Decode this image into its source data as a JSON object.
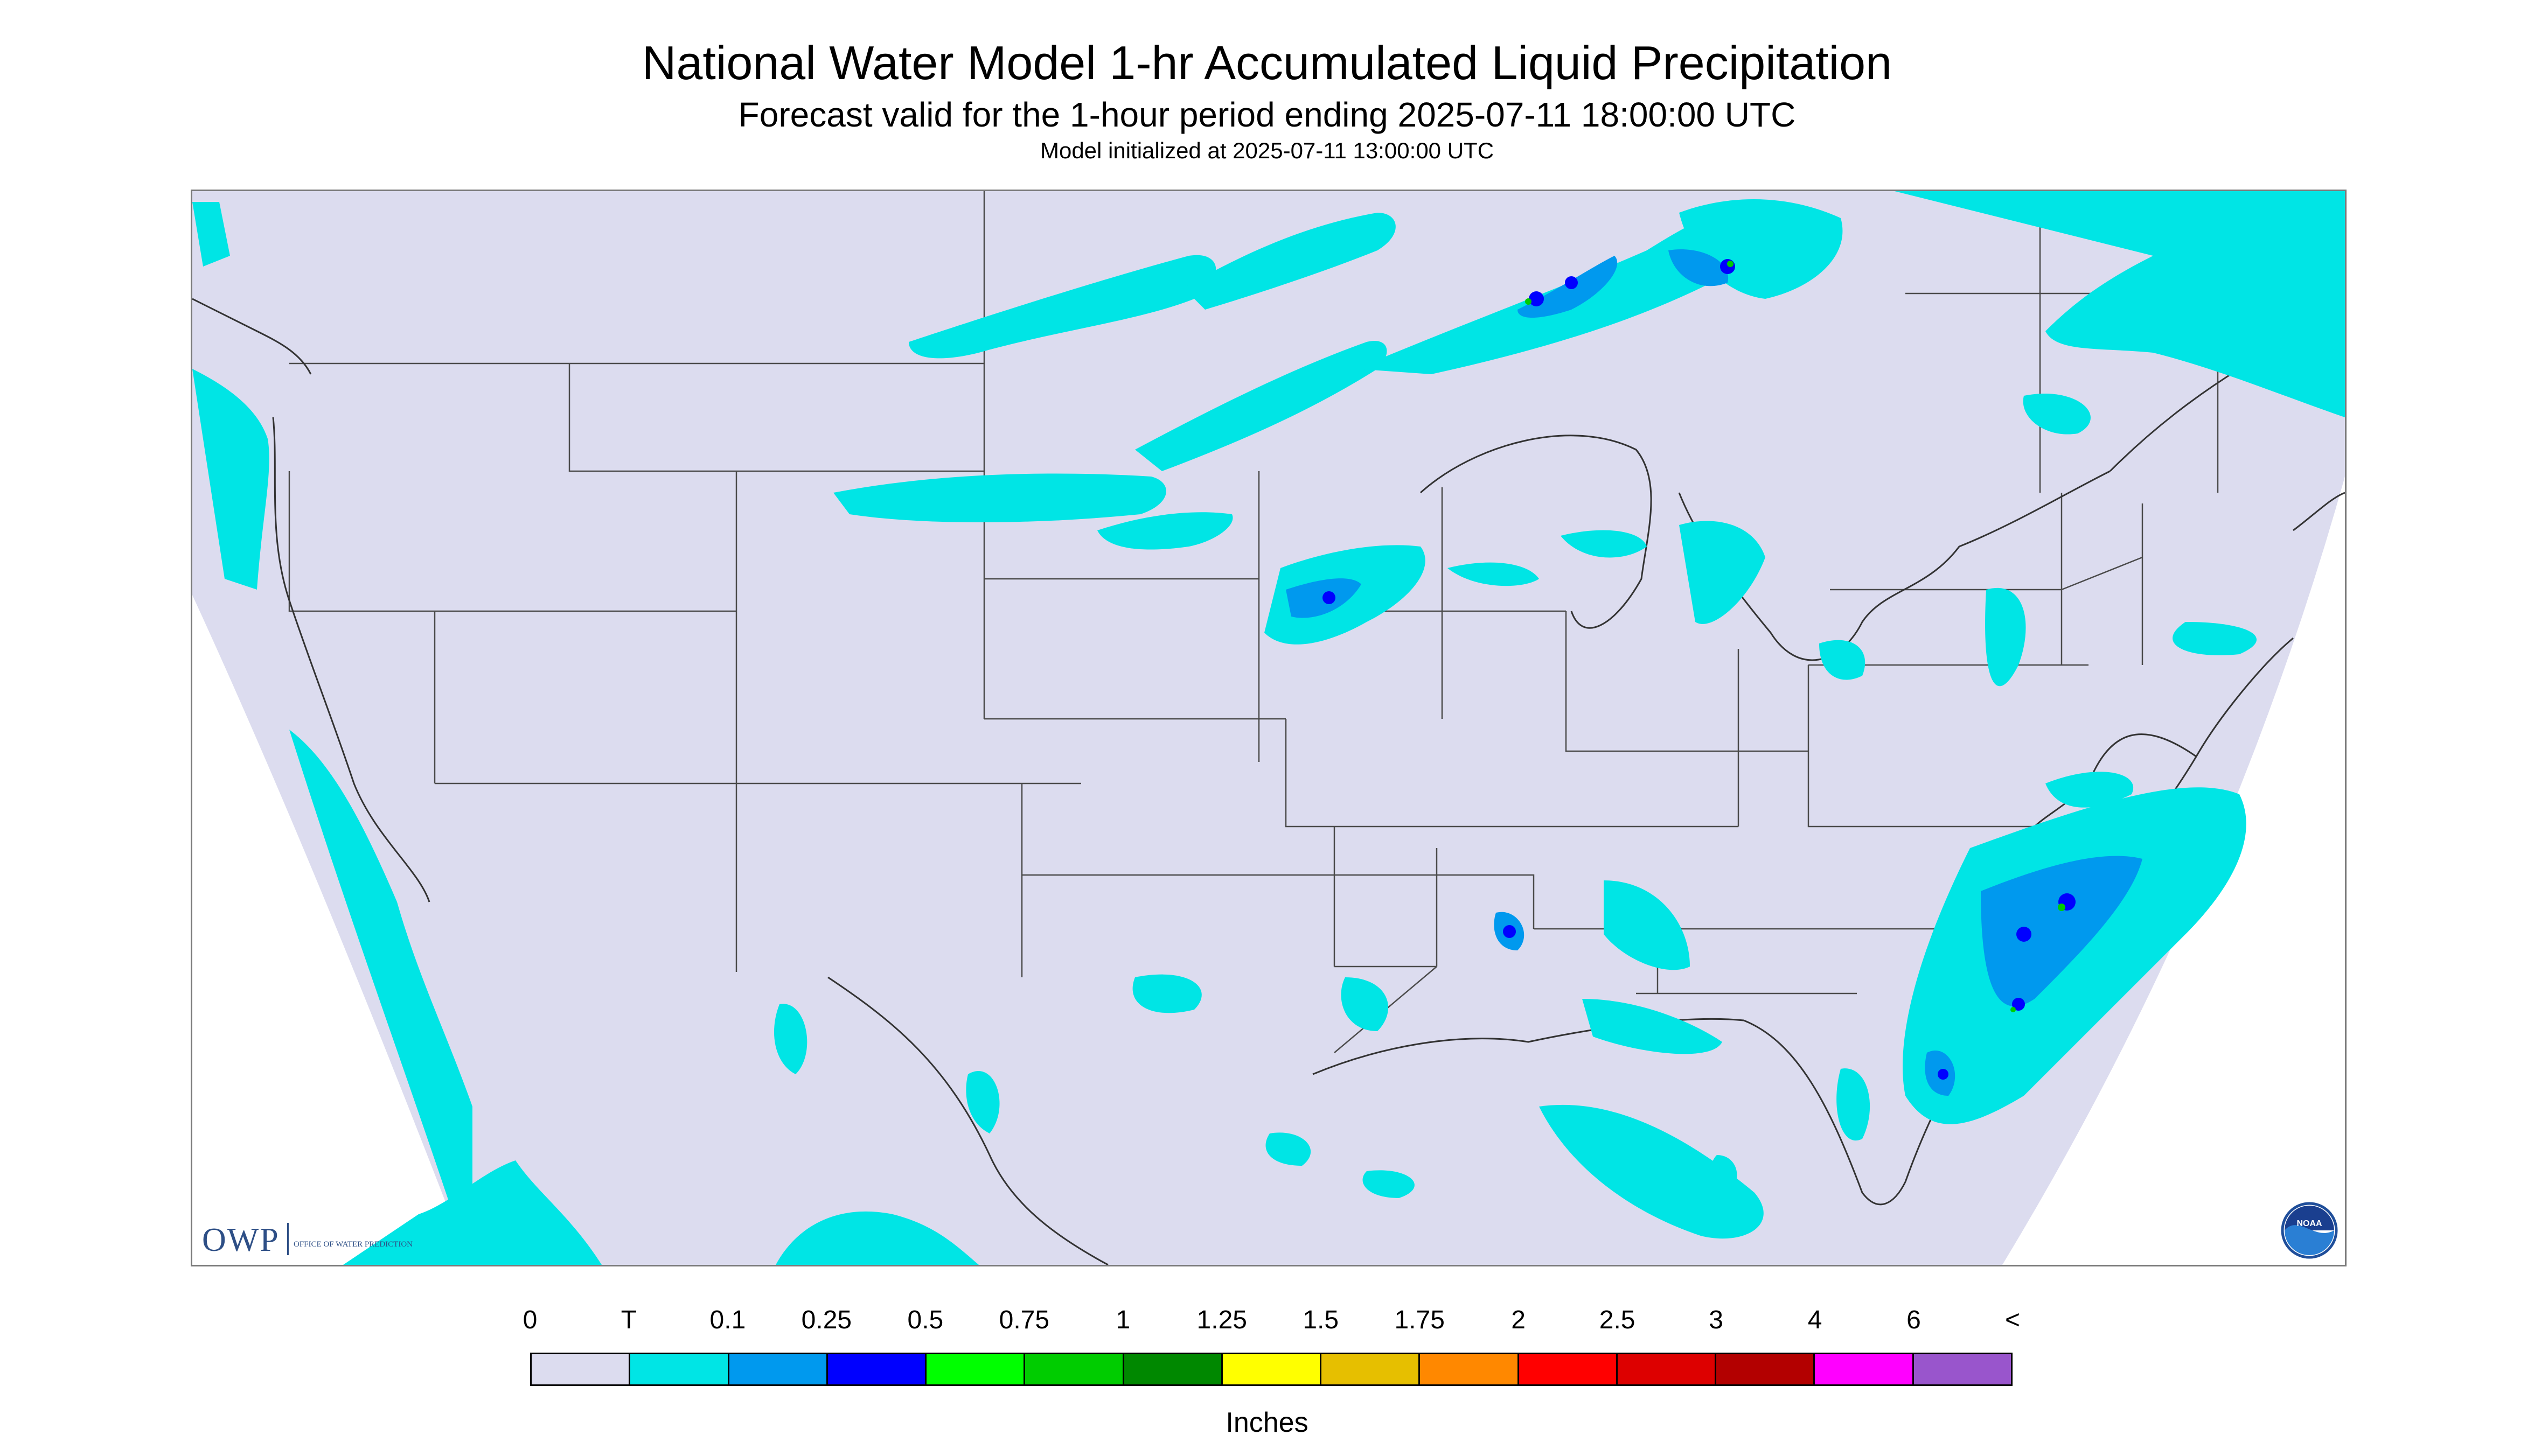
{
  "title": "National Water Model 1-hr Accumulated Liquid Precipitation",
  "subtitle": "Forecast valid for the 1-hour period ending 2025-07-11 18:00:00 UTC",
  "init_line": "Model initialized at 2025-07-11 13:00:00 UTC",
  "logos": {
    "owp": {
      "letters": "OWP",
      "subtext": "OFFICE OF WATER PREDICTION"
    },
    "noaa": {
      "text": "NOAA"
    }
  },
  "legend": {
    "labels": [
      "0",
      "T",
      "0.1",
      "0.25",
      "0.5",
      "0.75",
      "1",
      "1.25",
      "1.5",
      "1.75",
      "2",
      "2.5",
      "3",
      "4",
      "6",
      "<"
    ],
    "colors": [
      "#dcdcef",
      "#00e5e5",
      "#0099ee",
      "#0000ff",
      "#00ff00",
      "#00cc00",
      "#008800",
      "#ffff00",
      "#e6bf00",
      "#ff8800",
      "#ff0000",
      "#dd0000",
      "#b30000",
      "#ff00ff",
      "#9955cc"
    ],
    "units": "Inches"
  },
  "colors": {
    "no_data": "#dcdcef",
    "trace": "#00e5e5",
    "boundary": "#4a4a4a"
  }
}
